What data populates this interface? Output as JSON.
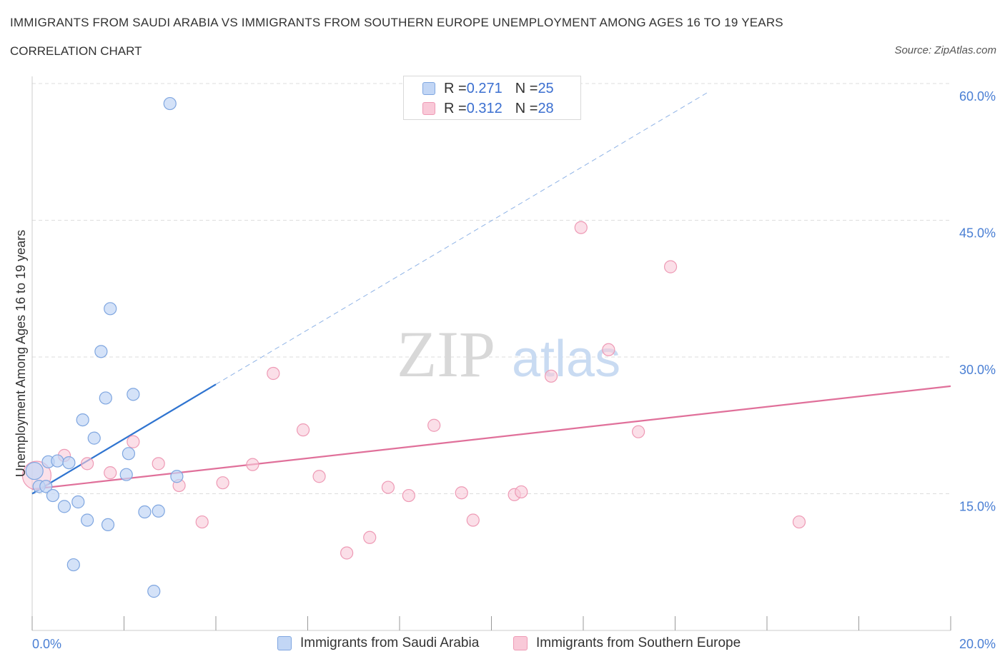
{
  "header": {
    "title": "IMMIGRANTS FROM SAUDI ARABIA VS IMMIGRANTS FROM SOUTHERN EUROPE UNEMPLOYMENT AMONG AGES 16 TO 19 YEARS",
    "subtitle": "CORRELATION CHART",
    "source": "Source: ZipAtlas.com"
  },
  "watermark": {
    "zip": "ZIP",
    "atlas": "atlas"
  },
  "legend": {
    "saudi": {
      "r_label": "R = ",
      "r_value": "0.271",
      "n_label": "N = ",
      "n_value": "25"
    },
    "southern": {
      "r_label": "R = ",
      "r_value": "0.312",
      "n_label": "N = ",
      "n_value": "28"
    }
  },
  "colors": {
    "saudi_fill": "#c2d6f5",
    "saudi_stroke": "#7fa6e0",
    "saudi_line": "#2f74d0",
    "southern_fill": "#f9c9d8",
    "southern_stroke": "#ee9ab5",
    "southern_line": "#e0709a",
    "grid": "#dddddd",
    "tick_text": "#4a7fd4"
  },
  "chart_data": {
    "type": "scatter",
    "title": "IMMIGRANTS FROM SAUDI ARABIA VS IMMIGRANTS FROM SOUTHERN EUROPE UNEMPLOYMENT AMONG AGES 16 TO 19 YEARS",
    "xlabel": "",
    "ylabel": "Unemployment Among Ages 16 to 19 years",
    "xlim": [
      0,
      20
    ],
    "ylim": [
      0,
      60
    ],
    "x_tick_labels": [
      "0.0%",
      "20.0%"
    ],
    "y_ticks": [
      15,
      30,
      45,
      60
    ],
    "y_tick_labels": [
      "15.0%",
      "30.0%",
      "45.0%",
      "60.0%"
    ],
    "grid": true,
    "series": [
      {
        "name": "Immigrants from Saudi Arabia",
        "points": [
          [
            0.05,
            17.5
          ],
          [
            0.15,
            15.8
          ],
          [
            0.3,
            15.8
          ],
          [
            0.35,
            18.5
          ],
          [
            0.45,
            14.8
          ],
          [
            0.55,
            18.6
          ],
          [
            0.7,
            13.6
          ],
          [
            0.8,
            18.4
          ],
          [
            0.9,
            7.2
          ],
          [
            1.0,
            14.1
          ],
          [
            1.1,
            23.1
          ],
          [
            1.2,
            12.1
          ],
          [
            1.35,
            21.1
          ],
          [
            1.5,
            30.6
          ],
          [
            1.6,
            25.5
          ],
          [
            1.65,
            11.6
          ],
          [
            1.7,
            35.3
          ],
          [
            2.05,
            17.1
          ],
          [
            2.1,
            19.4
          ],
          [
            2.2,
            25.9
          ],
          [
            2.45,
            13.0
          ],
          [
            2.65,
            4.3
          ],
          [
            2.75,
            13.1
          ],
          [
            3.0,
            57.8
          ],
          [
            3.15,
            16.9
          ]
        ],
        "trend": {
          "x": [
            0.0,
            4.0
          ],
          "y": [
            15.0,
            27.0
          ],
          "extended_x": [
            4.0,
            14.7
          ],
          "extended_y": [
            27.0,
            59.0
          ]
        }
      },
      {
        "name": "Immigrants from Southern Europe",
        "points": [
          [
            0.1,
            17.0
          ],
          [
            0.7,
            19.2
          ],
          [
            1.2,
            18.3
          ],
          [
            1.7,
            17.3
          ],
          [
            2.2,
            20.7
          ],
          [
            2.75,
            18.3
          ],
          [
            3.2,
            15.9
          ],
          [
            3.7,
            11.9
          ],
          [
            4.15,
            16.2
          ],
          [
            4.8,
            18.2
          ],
          [
            5.25,
            28.2
          ],
          [
            5.9,
            22.0
          ],
          [
            6.25,
            16.9
          ],
          [
            6.85,
            8.5
          ],
          [
            7.35,
            10.2
          ],
          [
            7.75,
            15.7
          ],
          [
            8.2,
            14.8
          ],
          [
            8.75,
            22.5
          ],
          [
            9.35,
            15.1
          ],
          [
            9.6,
            12.1
          ],
          [
            10.5,
            14.9
          ],
          [
            10.65,
            15.2
          ],
          [
            11.3,
            27.9
          ],
          [
            11.95,
            44.2
          ],
          [
            12.55,
            30.8
          ],
          [
            13.2,
            21.8
          ],
          [
            13.9,
            39.9
          ],
          [
            16.7,
            11.9
          ]
        ],
        "trend": {
          "x": [
            0.0,
            20.0
          ],
          "y": [
            15.5,
            26.8
          ]
        }
      }
    ]
  }
}
